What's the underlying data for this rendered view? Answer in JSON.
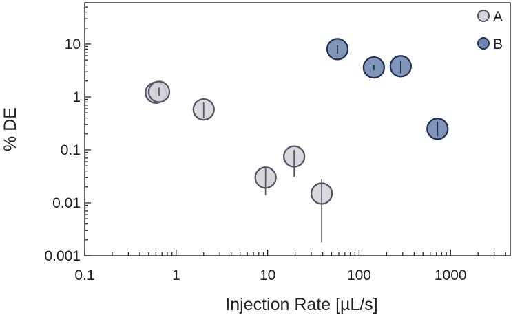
{
  "chart_data": {
    "type": "scatter",
    "title": "",
    "xlabel": "Injection Rate [µL/s]",
    "ylabel": "% DE",
    "xscale": "log",
    "yscale": "log",
    "xlim": [
      0.1,
      4500
    ],
    "ylim": [
      0.001,
      60
    ],
    "grid": false,
    "legend_position": "top-right",
    "x_ticks": [
      {
        "value": 0.1,
        "label": "0.1"
      },
      {
        "value": 1,
        "label": "1"
      },
      {
        "value": 10,
        "label": "10"
      },
      {
        "value": 100,
        "label": "100"
      },
      {
        "value": 1000,
        "label": "1000"
      }
    ],
    "y_ticks": [
      {
        "value": 0.001,
        "label": "0.001"
      },
      {
        "value": 0.01,
        "label": "0.01"
      },
      {
        "value": 0.1,
        "label": "0.1"
      },
      {
        "value": 1,
        "label": "1"
      },
      {
        "value": 10,
        "label": "10"
      }
    ],
    "series": [
      {
        "name": "A",
        "fill": "#d3d3d8",
        "stroke": "#555566",
        "points": [
          {
            "x": 0.6,
            "y": 1.2,
            "y_low": 1.0,
            "y_high": 1.45
          },
          {
            "x": 0.65,
            "y": 1.25,
            "y_low": 1.05,
            "y_high": 1.5
          },
          {
            "x": 2.0,
            "y": 0.58,
            "y_low": 0.4,
            "y_high": 0.8
          },
          {
            "x": 9.5,
            "y": 0.03,
            "y_low": 0.014,
            "y_high": 0.045
          },
          {
            "x": 19.5,
            "y": 0.075,
            "y_low": 0.031,
            "y_high": 0.1
          },
          {
            "x": 39,
            "y": 0.015,
            "y_low": 0.0018,
            "y_high": 0.028
          }
        ]
      },
      {
        "name": "B",
        "fill": "#6f86ae",
        "stroke": "#1f3158",
        "points": [
          {
            "x": 58,
            "y": 8.0,
            "y_low": 6.5,
            "y_high": 9.5
          },
          {
            "x": 145,
            "y": 3.6,
            "y_low": 3.2,
            "y_high": 4.0
          },
          {
            "x": 285,
            "y": 3.8,
            "y_low": 2.8,
            "y_high": 4.8
          },
          {
            "x": 720,
            "y": 0.25,
            "y_low": 0.18,
            "y_high": 0.34
          }
        ]
      }
    ]
  }
}
